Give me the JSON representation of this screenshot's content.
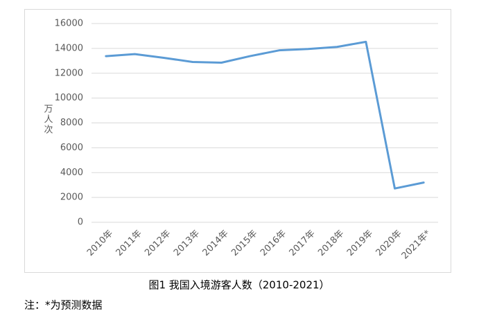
{
  "chart_data": {
    "type": "line",
    "y_label": "万人次",
    "caption": "图1  我国入境游客人数（2010-2021）",
    "note": "注：*为预测数据",
    "categories": [
      "2010年",
      "2011年",
      "2012年",
      "2013年",
      "2014年",
      "2015年",
      "2016年",
      "2017年",
      "2018年",
      "2019年",
      "2020年",
      "2021年*"
    ],
    "values": [
      13376,
      13542,
      13241,
      12908,
      12849,
      13382,
      13844,
      13948,
      14120,
      14531,
      2720,
      3200
    ],
    "color": "#5b9bd5",
    "ylim": [
      0,
      16000
    ],
    "yticks": [
      0,
      2000,
      4000,
      6000,
      8000,
      10000,
      12000,
      14000,
      16000
    ],
    "grid": true
  }
}
